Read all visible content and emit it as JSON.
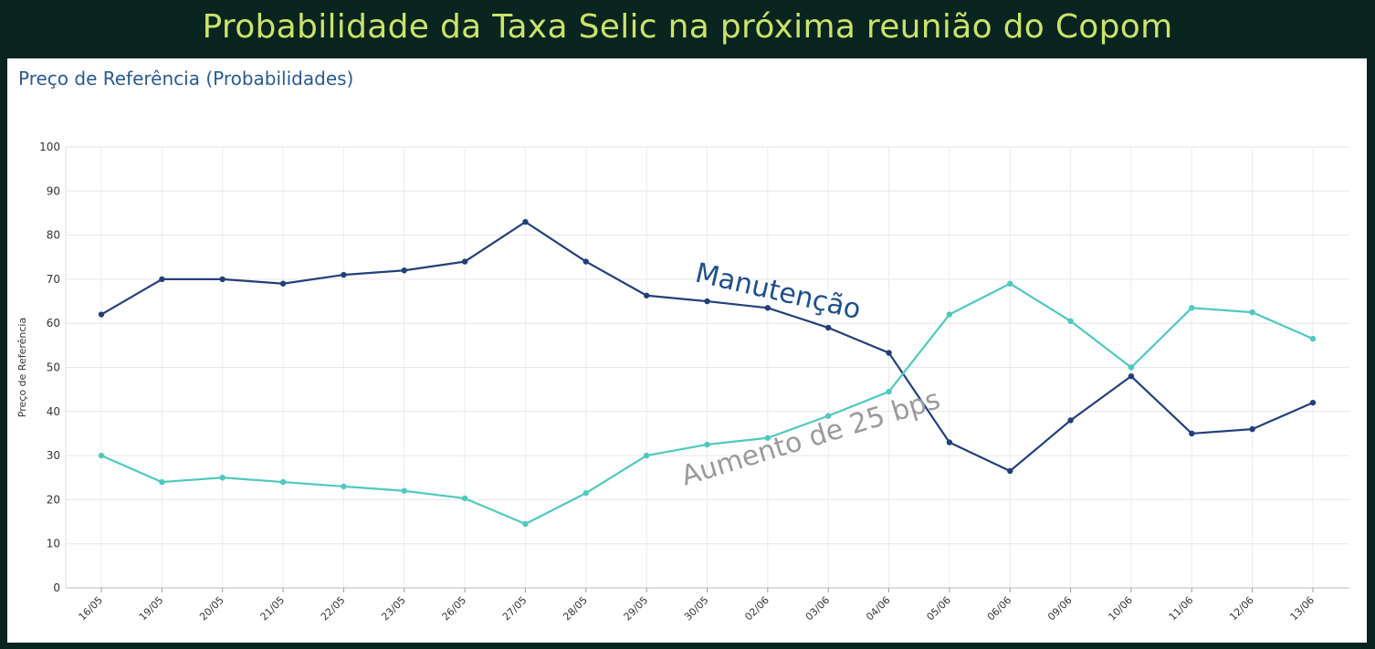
{
  "banner": {
    "title": "Probabilidade da Taxa Selic na próxima reunião do Copom"
  },
  "panel": {
    "title": "Preço de Referência (Probabilidades)"
  },
  "chart_data": {
    "type": "line",
    "title": "Preço de Referência (Probabilidades)",
    "xlabel": "",
    "ylabel": "Preço de Referência",
    "ylim": [
      0,
      100
    ],
    "yticks": [
      0,
      10,
      20,
      30,
      40,
      50,
      60,
      70,
      80,
      90,
      100
    ],
    "grid": true,
    "categories": [
      "16/05",
      "19/05",
      "20/05",
      "21/05",
      "22/05",
      "23/05",
      "26/05",
      "27/05",
      "28/05",
      "29/05",
      "30/05",
      "02/06",
      "03/06",
      "04/06",
      "05/06",
      "06/06",
      "09/06",
      "10/06",
      "11/06",
      "12/06",
      "13/06"
    ],
    "series": [
      {
        "name": "Manutenção",
        "color": "#233f78",
        "values": [
          62,
          70,
          70,
          69,
          71,
          72,
          74,
          83,
          74,
          66.3,
          65,
          63.5,
          59,
          53.3,
          33,
          26.5,
          38,
          48,
          35,
          36,
          42
        ]
      },
      {
        "name": "Aumento de 25 bps",
        "color": "#4ec9bd",
        "values": [
          30,
          24,
          25,
          24,
          23,
          22,
          20.3,
          14.5,
          21.5,
          30,
          32.5,
          34,
          39,
          44.5,
          62,
          69,
          60.5,
          50,
          63.5,
          62.5,
          56.5
        ]
      }
    ],
    "annotations": [
      "Manutenção",
      "Aumento de 25 bps"
    ]
  }
}
